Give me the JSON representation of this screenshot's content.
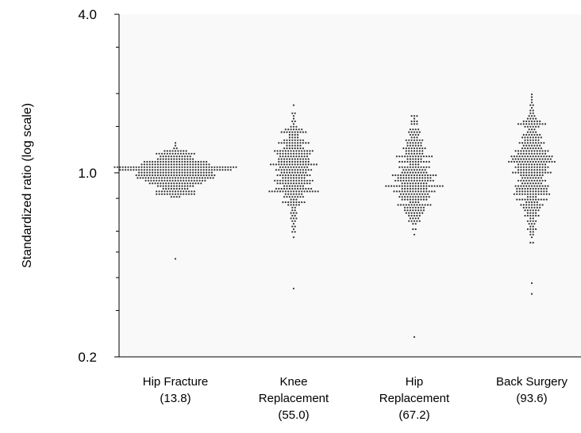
{
  "chart_data": {
    "type": "scatter",
    "subtype": "beeswarm dot plot",
    "ylabel": "Standardized ratio (log scale)",
    "yscale": "log",
    "ylim": [
      0.2,
      4.0
    ],
    "yticks": [
      {
        "value": 4.0,
        "label": "4.0"
      },
      {
        "value": 1.0,
        "label": "1.0"
      },
      {
        "value": 0.2,
        "label": "0.2"
      }
    ],
    "yminor_ticks": [
      3.0,
      2.0,
      1.5,
      0.8,
      0.6,
      0.5,
      0.4,
      0.3
    ],
    "background": "#f9f9f9",
    "dot_color": "#333333",
    "categories": [
      {
        "lines": [
          "Hip Fracture",
          "(13.8)"
        ],
        "dots_estimated": 380,
        "median": 1.0,
        "q_low": 0.89,
        "q_high": 1.1,
        "min": 0.8,
        "max": 1.3,
        "peak_halfwidth_ratio": 0.34,
        "outliers": [
          0.47
        ]
      },
      {
        "lines": [
          "Knee",
          "Replacement",
          "(55.0)"
        ],
        "dots_estimated": 330,
        "median": 1.04,
        "q_low": 0.85,
        "q_high": 1.28,
        "min": 0.5,
        "max": 2.0,
        "peak_halfwidth_ratio": 0.28,
        "outliers": [
          0.36
        ]
      },
      {
        "lines": [
          "Hip",
          "Replacement",
          "(67.2)"
        ],
        "dots_estimated": 330,
        "median": 0.95,
        "q_low": 0.78,
        "q_high": 1.2,
        "min": 0.47,
        "max": 1.75,
        "peak_halfwidth_ratio": 0.2,
        "outliers": [
          0.24
        ]
      },
      {
        "lines": [
          "Back Surgery",
          "(93.6)"
        ],
        "dots_estimated": 380,
        "median": 1.05,
        "q_low": 0.82,
        "q_high": 1.35,
        "min": 0.42,
        "max": 2.6,
        "peak_halfwidth_ratio": 0.23,
        "outliers": [
          0.38,
          0.35
        ]
      }
    ]
  }
}
